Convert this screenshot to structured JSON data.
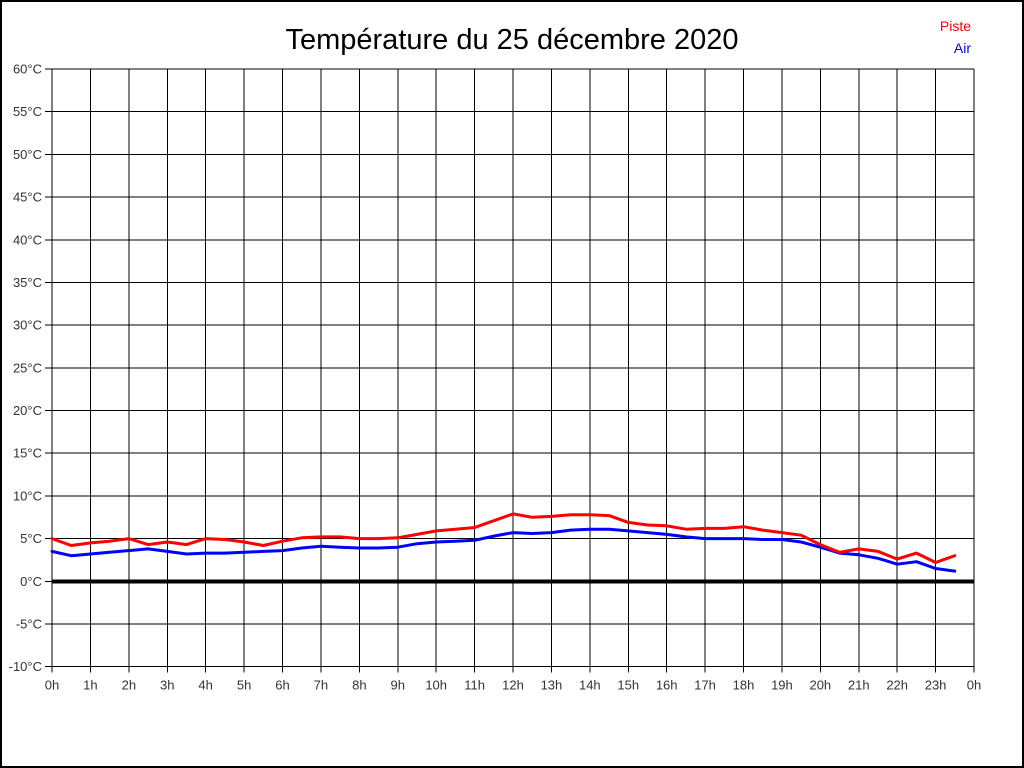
{
  "title": "Température du 25 décembre 2020",
  "legend": {
    "piste": "Piste",
    "air": "Air"
  },
  "colors": {
    "piste": "#ff0000",
    "air": "#0000ff",
    "grid": "#000000",
    "zero_line": "#000000",
    "axis_text": "#333333",
    "background": "#ffffff",
    "border": "#000000"
  },
  "chart_data": {
    "type": "line",
    "title": "Température du 25 décembre 2020",
    "xlabel": "",
    "ylabel": "°C",
    "xlim": [
      0,
      24
    ],
    "ylim": [
      -10,
      60
    ],
    "x_tick_step": 1,
    "y_tick_step": 5,
    "grid": true,
    "legend_position": "top-right",
    "zero_line_bold": true,
    "x_tick_labels": [
      "0h",
      "1h",
      "2h",
      "3h",
      "4h",
      "5h",
      "6h",
      "7h",
      "8h",
      "9h",
      "10h",
      "11h",
      "12h",
      "13h",
      "14h",
      "15h",
      "16h",
      "17h",
      "18h",
      "19h",
      "20h",
      "21h",
      "22h",
      "23h",
      "0h"
    ],
    "y_tick_labels": [
      "60°C",
      "55°C",
      "50°C",
      "45°C",
      "40°C",
      "35°C",
      "30°C",
      "25°C",
      "20°C",
      "15°C",
      "10°C",
      "5°C",
      "0°C",
      "-5°C",
      "-10°C"
    ],
    "x": [
      0,
      0.5,
      1,
      1.5,
      2,
      2.5,
      3,
      3.5,
      4,
      4.5,
      5,
      5.5,
      6,
      6.5,
      7,
      7.5,
      8,
      8.5,
      9,
      9.5,
      10,
      10.5,
      11,
      11.5,
      12,
      12.5,
      13,
      13.5,
      14,
      14.5,
      15,
      15.5,
      16,
      16.5,
      17,
      17.5,
      18,
      18.5,
      19,
      19.5,
      20,
      20.5,
      21,
      21.5,
      22,
      22.5,
      23,
      23.5
    ],
    "series": [
      {
        "name": "Piste",
        "color": "#ff0000",
        "values": [
          5.0,
          4.2,
          4.5,
          4.7,
          5.0,
          4.3,
          4.6,
          4.3,
          5.0,
          4.9,
          4.6,
          4.2,
          4.7,
          5.1,
          5.2,
          5.2,
          5.0,
          5.0,
          5.1,
          5.5,
          5.9,
          6.1,
          6.3,
          7.1,
          7.9,
          7.5,
          7.6,
          7.8,
          7.8,
          7.7,
          6.9,
          6.6,
          6.5,
          6.1,
          6.2,
          6.2,
          6.4,
          6.0,
          5.7,
          5.4,
          4.3,
          3.4,
          3.8,
          3.5,
          2.6,
          3.3,
          2.2,
          3.0
        ]
      },
      {
        "name": "Air",
        "color": "#0000ff",
        "values": [
          3.5,
          3.0,
          3.2,
          3.4,
          3.6,
          3.8,
          3.5,
          3.2,
          3.3,
          3.3,
          3.4,
          3.5,
          3.6,
          3.9,
          4.1,
          4.0,
          3.9,
          3.9,
          4.0,
          4.4,
          4.6,
          4.7,
          4.8,
          5.3,
          5.7,
          5.6,
          5.7,
          6.0,
          6.1,
          6.1,
          5.9,
          5.7,
          5.5,
          5.2,
          5.0,
          5.0,
          5.0,
          4.9,
          4.9,
          4.6,
          4.0,
          3.3,
          3.1,
          2.7,
          2.0,
          2.3,
          1.5,
          1.2
        ]
      }
    ]
  }
}
